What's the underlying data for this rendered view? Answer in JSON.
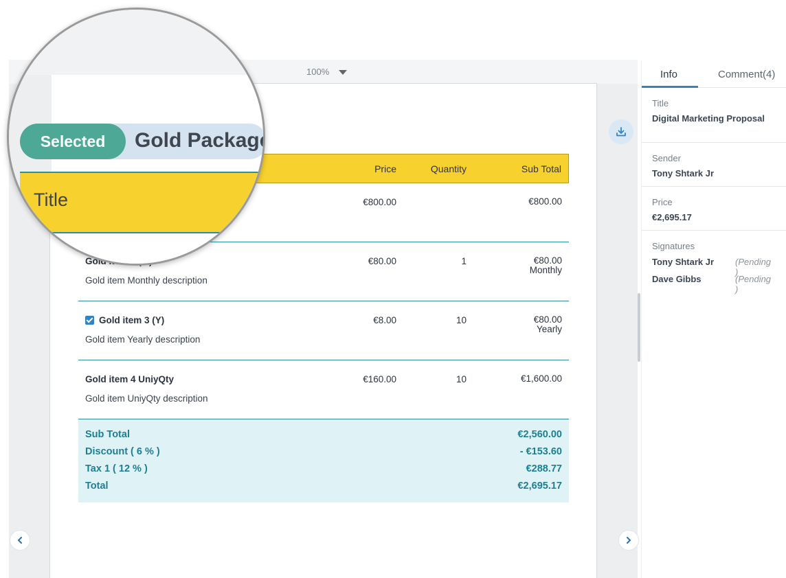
{
  "viewer": {
    "zoom": "100%",
    "table": {
      "headers": {
        "price": "Price",
        "quantity": "Quantity",
        "subtotal": "Sub Total"
      },
      "rows": [
        {
          "name": "",
          "description": "",
          "price": "€800.00",
          "quantity": "",
          "subtotal": "€800.00",
          "period": "",
          "checked": false
        },
        {
          "name": "Gold item 2 (M)",
          "description": "Gold item Monthly description",
          "price": "€80.00",
          "quantity": "1",
          "subtotal": "€80.00",
          "period": "Monthly",
          "checked": false
        },
        {
          "name": "Gold item 3 (Y)",
          "description": "Gold item Yearly description",
          "price": "€8.00",
          "quantity": "10",
          "subtotal": "€80.00",
          "period": "Yearly",
          "checked": true
        },
        {
          "name": "Gold item 4 UniyQty",
          "description": "Gold item UniyQty description",
          "price": "€160.00",
          "quantity": "10",
          "subtotal": "€1,600.00",
          "period": "",
          "checked": false
        }
      ]
    },
    "totals": {
      "subtotal_label": "Sub Total",
      "subtotal_value": "€2,560.00",
      "discount_label": "Discount ( 6 % )",
      "discount_value": "- €153.60",
      "tax_label": "Tax 1 ( 12 % )",
      "tax_value": "€288.77",
      "total_label": "Total",
      "total_value": "€2,695.17"
    },
    "magnifier": {
      "selected_label": "Selected",
      "package_name": "Gold Package",
      "title_header": "Title"
    },
    "icons": {
      "download": "download-icon",
      "prev": "chevron-left-icon",
      "next": "chevron-right-icon",
      "zoom_caret": "caret-down-icon"
    }
  },
  "panel": {
    "tabs": {
      "info": "Info",
      "comment": "Comment(4)"
    },
    "title": {
      "label": "Title",
      "value": "Digital Marketing Proposal"
    },
    "sender": {
      "label": "Sender",
      "value": "Tony Shtark Jr"
    },
    "price": {
      "label": "Price",
      "value": "€2,695.17"
    },
    "signatures": {
      "label": "Signatures",
      "items": [
        {
          "name": "Tony Shtark Jr",
          "status": "(Pending )"
        },
        {
          "name": "Dave Gibbs",
          "status": "(Pending )"
        }
      ]
    }
  },
  "colors": {
    "accent": "#2f84c6",
    "header_yellow": "#f7d22e",
    "totals_teal": "#1e7f93",
    "selected_green": "#4ea896"
  }
}
